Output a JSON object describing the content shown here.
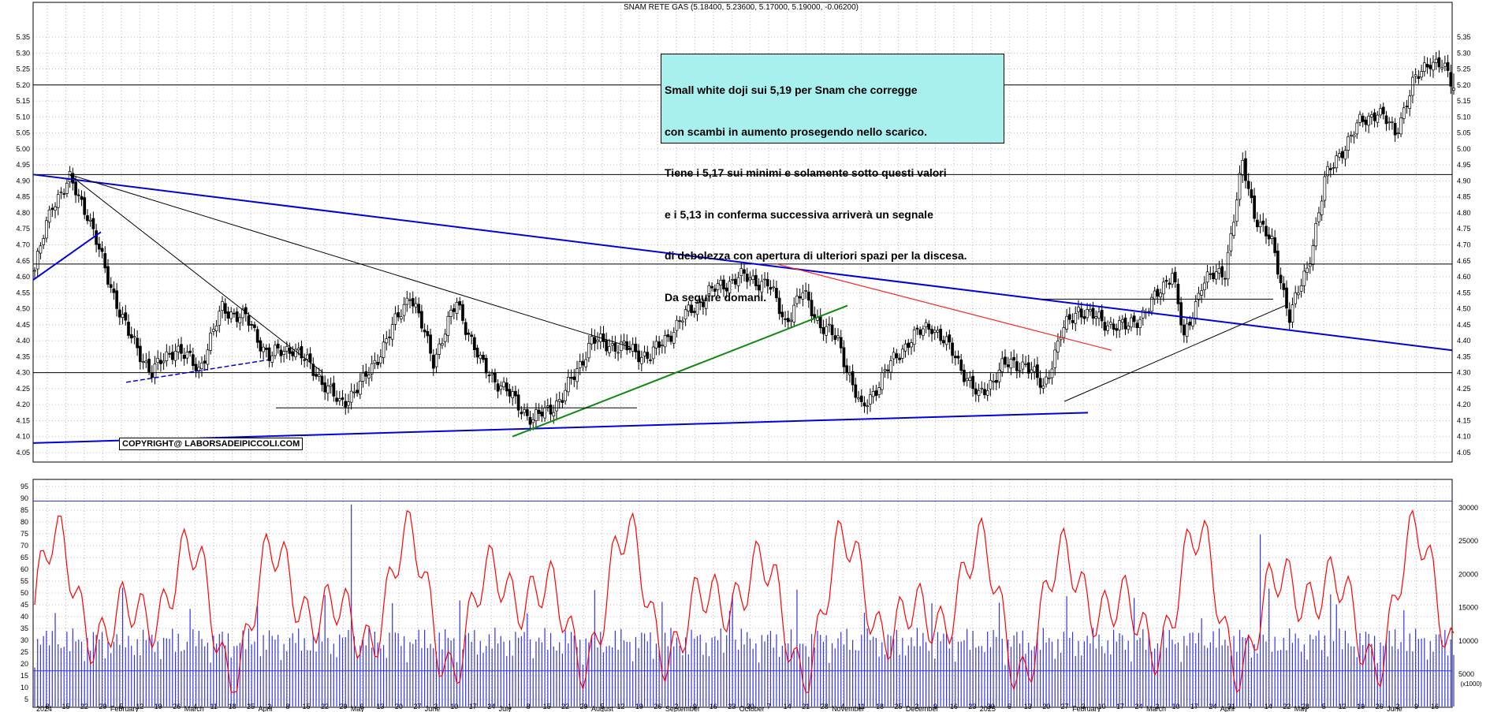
{
  "header": {
    "title": "SNAM RETE GAS (5.18400, 5.23600, 5.17000, 5.19000, -0.06200)"
  },
  "annotation": {
    "lines": [
      "Small white doji sui 5,19 per Snam che corregge",
      "con scambi in aumento prosegendo nello scarico.",
      "Tiene i 5,17 sui minimi e solamente sotto questi valori",
      "e i 5,13 in conferma successiva arriverà un segnale",
      "di debolezza con apertura di ulteriori spazi per la discesa.",
      "Da seguire domani."
    ]
  },
  "copyright": "COPYRIGHT@ LABORSADEIPICCOLI.COM",
  "volume_unit": "(x1000)",
  "colors": {
    "trend_blue": "#0000dd",
    "support_green": "#118811",
    "resistance_red": "#ff2222",
    "rsi_line": "#ff0000",
    "volume_bar": "#3333ee",
    "note_bg": "#a8f0ee"
  },
  "chart_data": [
    {
      "type": "candlestick",
      "title": "SNAM RETE GAS (5.18400, 5.23600, 5.17000, 5.19000, -0.06200)",
      "ylim": [
        4.0,
        5.4
      ],
      "yticks": [
        "4.05",
        "4.10",
        "4.15",
        "4.20",
        "4.25",
        "4.30",
        "4.35",
        "4.40",
        "4.45",
        "4.50",
        "4.55",
        "4.60",
        "4.65",
        "4.70",
        "4.75",
        "4.80",
        "4.85",
        "4.90",
        "4.95",
        "5.00",
        "5.05",
        "5.10",
        "5.15",
        "5.20",
        "5.25",
        "5.30",
        "5.35"
      ],
      "horizontal_levels": [
        4.3,
        4.64,
        4.92,
        5.2
      ],
      "x_day_labels": [
        "8",
        "15",
        "22",
        "29",
        "5",
        "12",
        "19",
        "26",
        "4",
        "11",
        "18",
        "25",
        "2",
        "8",
        "15",
        "22",
        "29",
        "6",
        "13",
        "20",
        "27",
        "3",
        "10",
        "17",
        "24",
        "1",
        "8",
        "15",
        "22",
        "29",
        "5",
        "12",
        "19",
        "26",
        "2",
        "9",
        "16",
        "23",
        "30",
        "7",
        "14",
        "21",
        "28",
        "4",
        "11",
        "18",
        "25",
        "2",
        "9",
        "16",
        "23",
        "30",
        "6",
        "13",
        "20",
        "27",
        "3",
        "10",
        "17",
        "24",
        "3",
        "10",
        "17",
        "24",
        "31",
        "7",
        "14",
        "22",
        "28",
        "5",
        "12",
        "19",
        "26",
        "2",
        "9",
        "16"
      ],
      "x_month_labels": [
        "2024",
        "February",
        "March",
        "April",
        "May",
        "June",
        "July",
        "August",
        "September",
        "October",
        "November",
        "December",
        "2025",
        "February",
        "March",
        "April",
        "May",
        "June"
      ],
      "last": {
        "open": 5.184,
        "high": 5.236,
        "low": 5.17,
        "close": 5.19,
        "change": -0.062
      }
    },
    {
      "type": "line",
      "name": "RSI",
      "ylim": [
        0,
        95
      ],
      "yticks": [
        "5",
        "10",
        "15",
        "20",
        "25",
        "30",
        "35",
        "40",
        "45",
        "50",
        "55",
        "60",
        "65",
        "70",
        "75",
        "80",
        "85",
        "90",
        "95"
      ],
      "levels": [
        15,
        90
      ]
    },
    {
      "type": "bar",
      "name": "Volume",
      "ylim": [
        0,
        32000
      ],
      "yticks": [
        "5000",
        "10000",
        "15000",
        "20000",
        "25000",
        "30000"
      ],
      "levels": [
        5500,
        31000
      ]
    }
  ]
}
